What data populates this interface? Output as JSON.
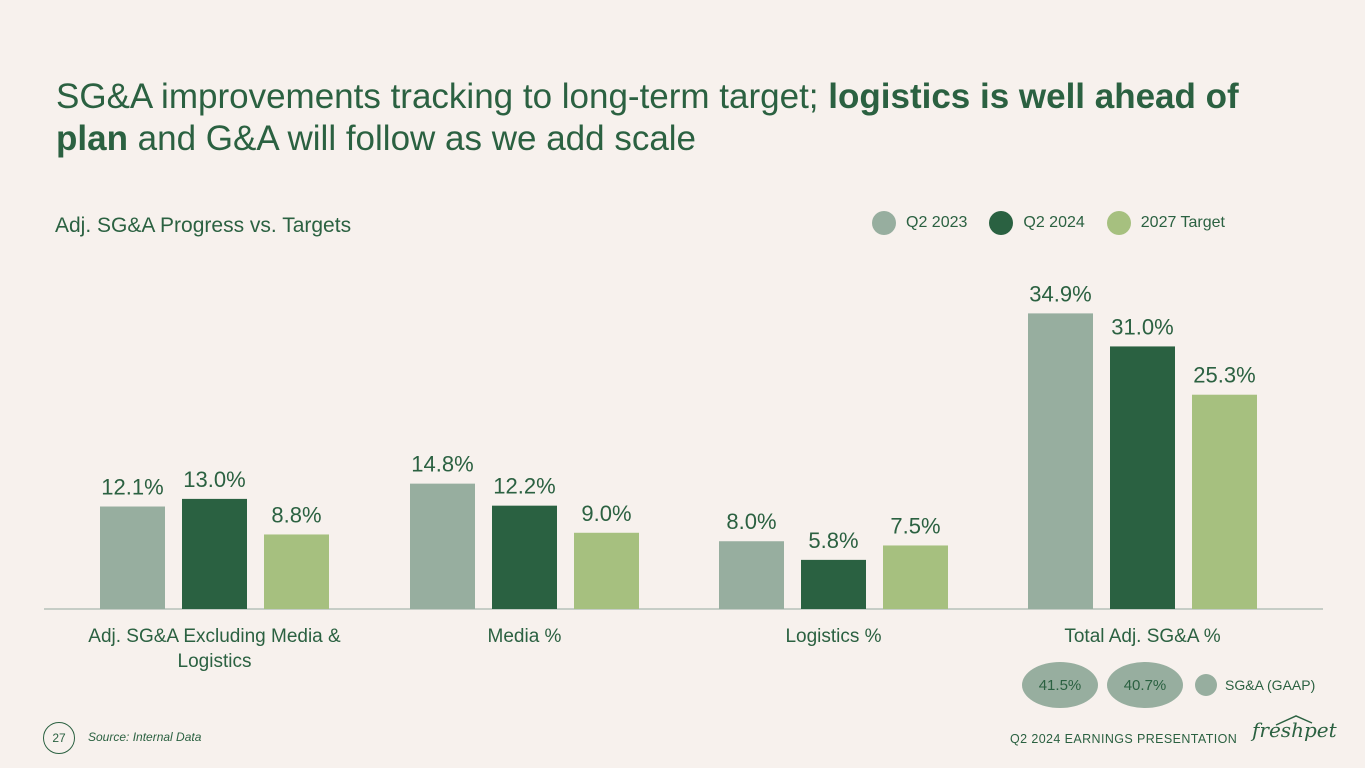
{
  "title": {
    "part1": "SG&A improvements tracking to long-term target; ",
    "bold1": "logistics is well ahead of",
    "bold2": "plan",
    "part2": " and G&A will follow as we add scale"
  },
  "subtitle": "Adj. SG&A Progress vs. Targets",
  "colors": {
    "q2_2023": "#97ae9f",
    "q2_2024": "#2a6141",
    "target_2027": "#a6c07f",
    "axis": "#a9b8ae"
  },
  "chart_data": {
    "type": "bar",
    "title": "Adj. SG&A Progress vs. Targets",
    "categories": [
      "Adj. SG&A Excluding Media & Logistics",
      "Media %",
      "Logistics %",
      "Total Adj. SG&A %"
    ],
    "category_lines": [
      [
        "Adj. SG&A Excluding Media &",
        "Logistics"
      ],
      [
        "Media %"
      ],
      [
        "Logistics %"
      ],
      [
        "Total Adj. SG&A %"
      ]
    ],
    "series": [
      {
        "name": "Q2 2023",
        "values": [
          12.1,
          14.8,
          8.0,
          34.9
        ],
        "labels": [
          "12.1%",
          "14.8%",
          "8.0%",
          "34.9%"
        ],
        "color_key": "q2_2023"
      },
      {
        "name": "Q2 2024",
        "values": [
          13.0,
          12.2,
          5.8,
          31.0
        ],
        "labels": [
          "13.0%",
          "12.2%",
          "5.8%",
          "31.0%"
        ],
        "color_key": "q2_2024"
      },
      {
        "name": "2027 Target",
        "values": [
          8.8,
          9.0,
          7.5,
          25.3
        ],
        "labels": [
          "8.8%",
          "9.0%",
          "7.5%",
          "25.3%"
        ],
        "color_key": "target_2027"
      }
    ],
    "ylim": [
      0,
      40
    ],
    "legend": "top-right",
    "grid": false
  },
  "gaap": {
    "q2_2023": "41.5%",
    "q2_2024": "40.7%",
    "label": "SG&A (GAAP)"
  },
  "footer": {
    "page": "27",
    "source": "Source: Internal Data",
    "presentation": "Q2 2024 EARNINGS PRESENTATION",
    "logo": "freshpet"
  }
}
